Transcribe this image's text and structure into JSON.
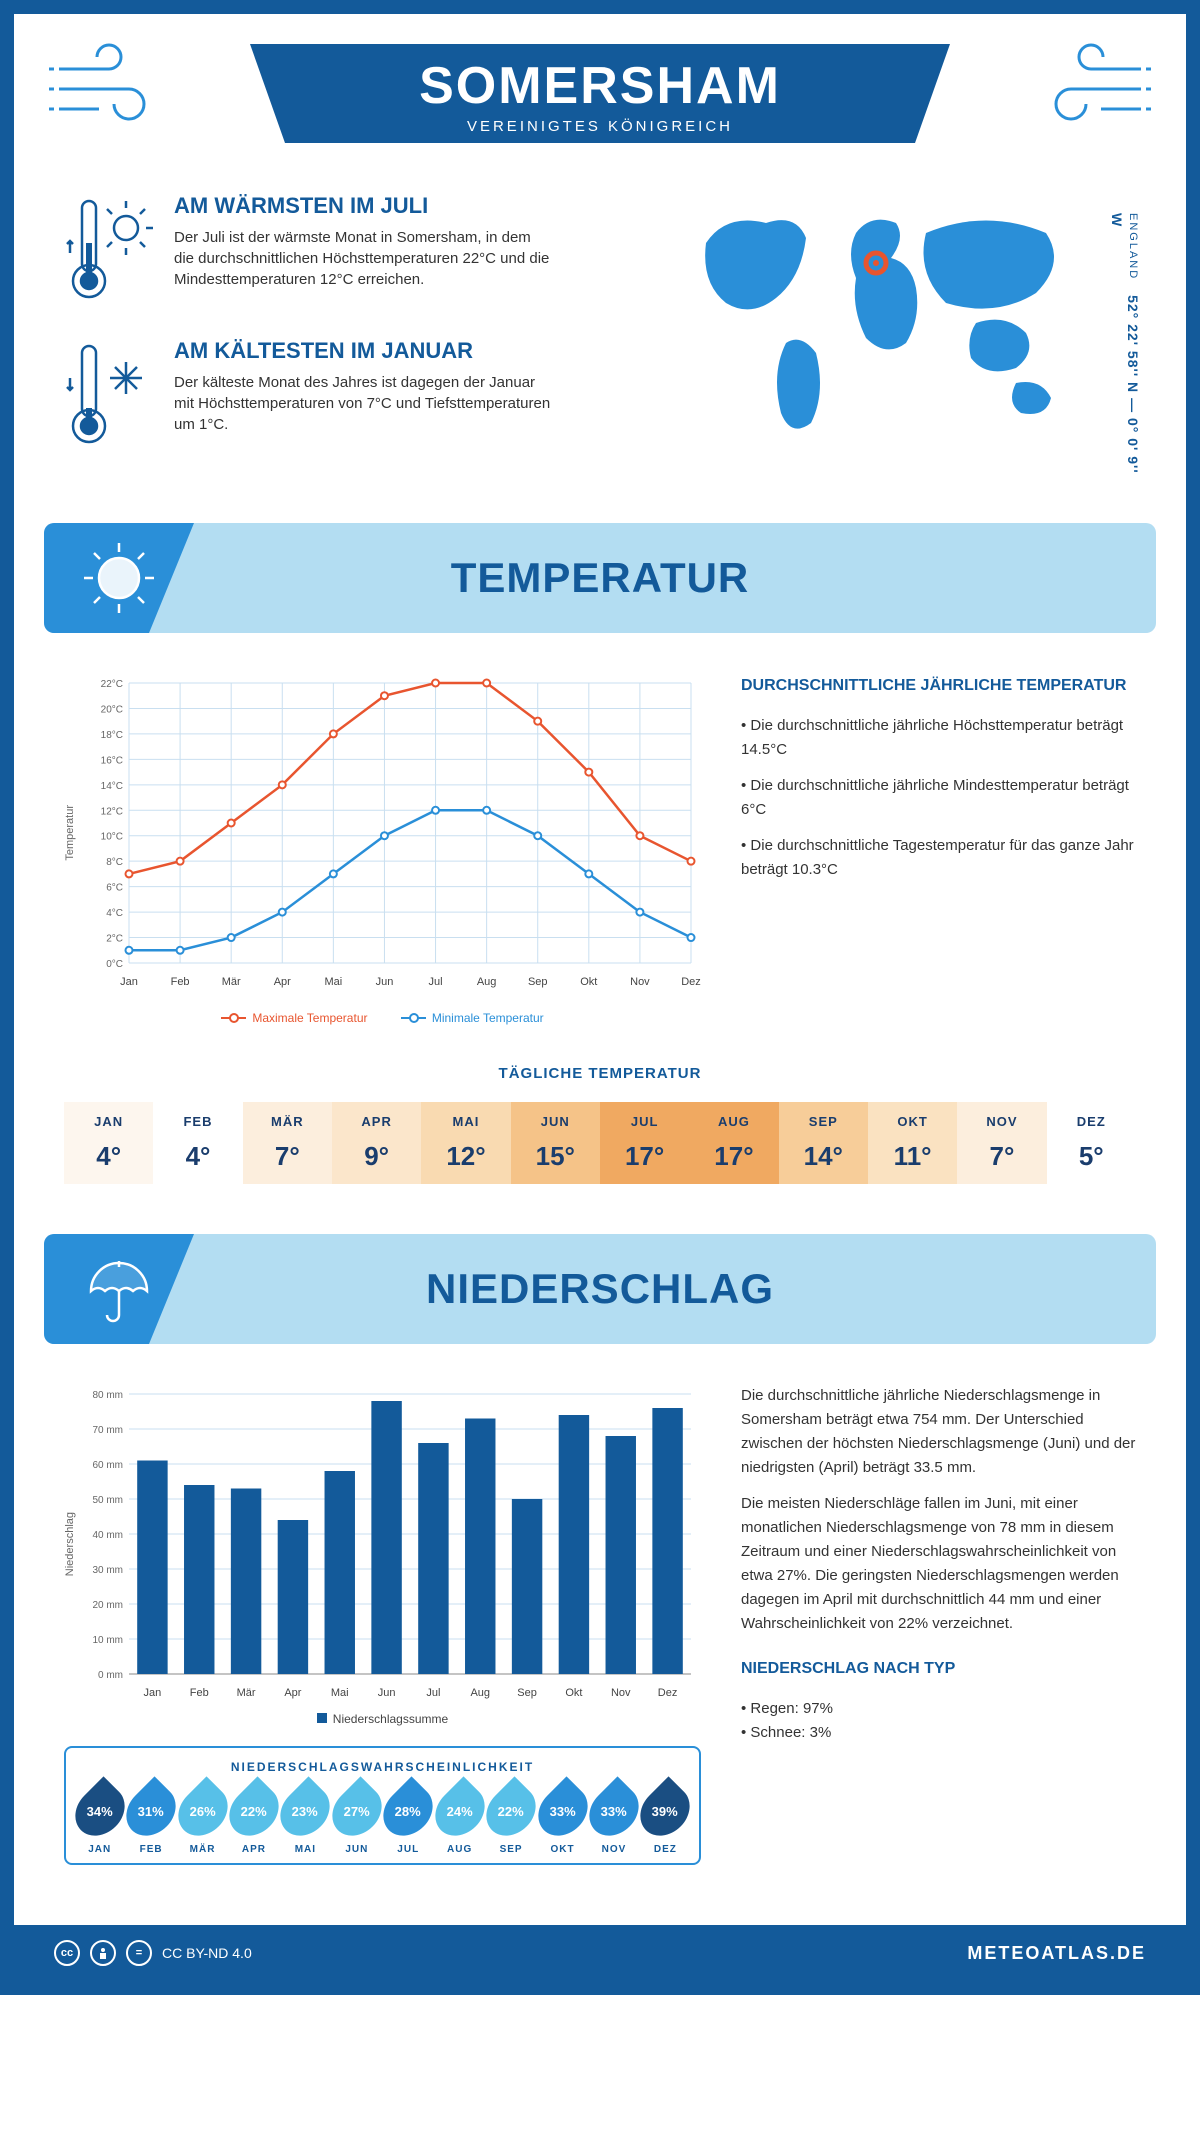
{
  "header": {
    "title": "SOMERSHAM",
    "subtitle": "VEREINIGTES KÖNIGREICH"
  },
  "coords": {
    "lat": "52° 22' 58'' N",
    "lon": "0° 0' 9'' W",
    "place": "ENGLAND"
  },
  "facts": {
    "warm": {
      "title": "AM WÄRMSTEN IM JULI",
      "text": "Der Juli ist der wärmste Monat in Somersham, in dem die durchschnittlichen Höchsttemperaturen 22°C und die Mindesttemperaturen 12°C erreichen."
    },
    "cold": {
      "title": "AM KÄLTESTEN IM JANUAR",
      "text": "Der kälteste Monat des Jahres ist dagegen der Januar mit Höchsttemperaturen von 7°C und Tiefsttemperaturen um 1°C."
    }
  },
  "sections": {
    "temp": "TEMPERATUR",
    "precip": "NIEDERSCHLAG"
  },
  "months": [
    "Jan",
    "Feb",
    "Mär",
    "Apr",
    "Mai",
    "Jun",
    "Jul",
    "Aug",
    "Sep",
    "Okt",
    "Nov",
    "Dez"
  ],
  "months_upper": [
    "JAN",
    "FEB",
    "MÄR",
    "APR",
    "MAI",
    "JUN",
    "JUL",
    "AUG",
    "SEP",
    "OKT",
    "NOV",
    "DEZ"
  ],
  "temp_chart": {
    "axis_label": "Temperatur",
    "ylim": [
      0,
      22
    ],
    "ytick_step": 2,
    "y_unit": "°C",
    "max": [
      7,
      8,
      11,
      14,
      18,
      21,
      22,
      22,
      19,
      15,
      10,
      8
    ],
    "min": [
      1,
      1,
      2,
      4,
      7,
      10,
      12,
      12,
      10,
      7,
      4,
      2
    ],
    "max_color": "#e8552f",
    "min_color": "#2a8fd8",
    "grid_color": "#c9dff0",
    "legend_max": "Maximale Temperatur",
    "legend_min": "Minimale Temperatur"
  },
  "temp_text": {
    "heading": "DURCHSCHNITTLICHE JÄHRLICHE TEMPERATUR",
    "bullets": [
      "• Die durchschnittliche jährliche Höchsttemperatur beträgt 14.5°C",
      "• Die durchschnittliche jährliche Mindesttemperatur beträgt 6°C",
      "• Die durchschnittliche Tagestemperatur für das ganze Jahr beträgt 10.3°C"
    ]
  },
  "daily": {
    "heading": "TÄGLICHE TEMPERATUR",
    "values": [
      "4°",
      "4°",
      "7°",
      "9°",
      "12°",
      "15°",
      "17°",
      "17°",
      "14°",
      "11°",
      "7°",
      "5°"
    ],
    "colors": [
      "#fdf6ee",
      "#ffffff",
      "#fceedd",
      "#fbe6cb",
      "#f9dab1",
      "#f5c388",
      "#f0a961",
      "#f0a961",
      "#f7cd99",
      "#fae2c1",
      "#fceedd",
      "#ffffff"
    ]
  },
  "precip_chart": {
    "axis_label": "Niederschlag",
    "ylim": [
      0,
      80
    ],
    "ytick_step": 10,
    "y_unit": " mm",
    "values": [
      61,
      54,
      53,
      44,
      58,
      78,
      66,
      73,
      50,
      74,
      68,
      76
    ],
    "bar_color": "#135a9a",
    "grid_color": "#c9dff0",
    "legend": "Niederschlagssumme"
  },
  "precip_text": {
    "p1": "Die durchschnittliche jährliche Niederschlagsmenge in Somersham beträgt etwa 754 mm. Der Unterschied zwischen der höchsten Niederschlagsmenge (Juni) und der niedrigsten (April) beträgt 33.5 mm.",
    "p2": "Die meisten Niederschläge fallen im Juni, mit einer monatlichen Niederschlagsmenge von 78 mm in diesem Zeitraum und einer Niederschlagswahrscheinlichkeit von etwa 27%. Die geringsten Niederschlagsmengen werden dagegen im April mit durchschnittlich 44 mm und einer Wahrscheinlichkeit von 22% verzeichnet.",
    "type_heading": "NIEDERSCHLAG NACH TYP",
    "types": [
      "• Regen: 97%",
      "• Schnee: 3%"
    ]
  },
  "prob": {
    "heading": "NIEDERSCHLAGSWAHRSCHEINLICHKEIT",
    "values": [
      34,
      31,
      26,
      22,
      23,
      27,
      28,
      24,
      22,
      33,
      33,
      39
    ],
    "color_scale": [
      "#1a4e82",
      "#2a8fd8",
      "#57c0e8"
    ]
  },
  "footer": {
    "license": "CC BY-ND 4.0",
    "site": "METEOATLAS.DE"
  }
}
